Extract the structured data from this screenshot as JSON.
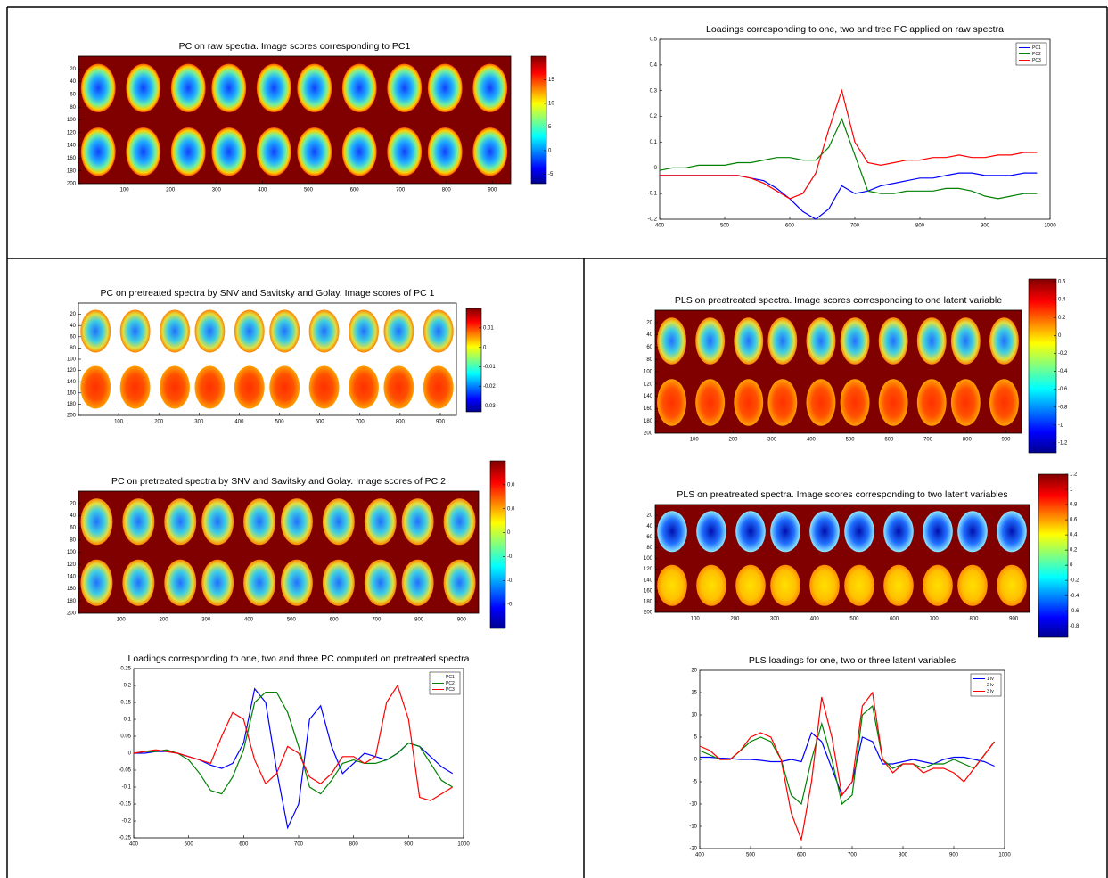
{
  "chart_data": [
    {
      "type": "image",
      "title": "PC on raw spectra. Image scores corresponding to PC1",
      "xlim": [
        0,
        940
      ],
      "xticks": [
        100,
        200,
        300,
        400,
        500,
        600,
        700,
        800,
        900
      ],
      "ylim": [
        0,
        200
      ],
      "y_reversed": true,
      "yticks": [
        20,
        40,
        60,
        80,
        100,
        120,
        140,
        160,
        180,
        200
      ],
      "clim": [
        -7,
        20
      ],
      "cticks": [
        -5,
        0,
        5,
        10,
        15
      ],
      "background": "#800000"
    },
    {
      "type": "line",
      "title": "Loadings corresponding to one, two and tree PC applied on raw spectra",
      "x": [
        400,
        420,
        440,
        460,
        480,
        500,
        520,
        540,
        560,
        580,
        600,
        620,
        640,
        660,
        680,
        700,
        720,
        740,
        760,
        780,
        800,
        820,
        840,
        860,
        880,
        900,
        920,
        940,
        960,
        980
      ],
      "xlim": [
        400,
        1000
      ],
      "xticks": [
        400,
        500,
        600,
        700,
        800,
        900,
        1000
      ],
      "ylim": [
        -0.2,
        0.5
      ],
      "yticks": [
        -0.2,
        -0.1,
        0,
        0.1,
        0.2,
        0.3,
        0.4,
        0.5
      ],
      "legend": "upper right",
      "series": [
        {
          "name": "PC1",
          "color": "#0000ff",
          "values": [
            -0.03,
            -0.03,
            -0.03,
            -0.03,
            -0.03,
            -0.03,
            -0.03,
            -0.04,
            -0.05,
            -0.08,
            -0.12,
            -0.17,
            -0.2,
            -0.16,
            -0.07,
            -0.1,
            -0.09,
            -0.07,
            -0.06,
            -0.05,
            -0.04,
            -0.04,
            -0.03,
            -0.02,
            -0.02,
            -0.03,
            -0.03,
            -0.03,
            -0.02,
            -0.02
          ]
        },
        {
          "name": "PC2",
          "color": "#008000",
          "values": [
            -0.01,
            0,
            0,
            0.01,
            0.01,
            0.01,
            0.02,
            0.02,
            0.03,
            0.04,
            0.04,
            0.03,
            0.03,
            0.08,
            0.19,
            0.05,
            -0.09,
            -0.1,
            -0.1,
            -0.09,
            -0.09,
            -0.09,
            -0.08,
            -0.08,
            -0.09,
            -0.11,
            -0.12,
            -0.11,
            -0.1,
            -0.1
          ]
        },
        {
          "name": "PC3",
          "color": "#ff0000",
          "values": [
            -0.03,
            -0.03,
            -0.03,
            -0.03,
            -0.03,
            -0.03,
            -0.03,
            -0.04,
            -0.06,
            -0.09,
            -0.12,
            -0.1,
            -0.02,
            0.15,
            0.3,
            0.1,
            0.02,
            0.01,
            0.02,
            0.03,
            0.03,
            0.04,
            0.04,
            0.05,
            0.04,
            0.04,
            0.05,
            0.05,
            0.06,
            0.06
          ]
        }
      ]
    },
    {
      "type": "image",
      "title": "PC on pretreated spectra by SNV and Savitsky and Golay. Image scores of PC 1",
      "xlim": [
        0,
        940
      ],
      "xticks": [
        100,
        200,
        300,
        400,
        500,
        600,
        700,
        800,
        900
      ],
      "ylim": [
        0,
        200
      ],
      "y_reversed": true,
      "yticks": [
        20,
        40,
        60,
        80,
        100,
        120,
        140,
        160,
        180,
        200
      ],
      "clim": [
        -0.033,
        0.02
      ],
      "cticks": [
        -0.03,
        -0.02,
        -0.01,
        0,
        0.01
      ],
      "background": "#ffffff"
    },
    {
      "type": "image",
      "title": "PC on pretreated spectra by SNV and Savitsky and Golay. Image scores of PC 2",
      "xlim": [
        0,
        940
      ],
      "xticks": [
        100,
        200,
        300,
        400,
        500,
        600,
        700,
        800,
        900
      ],
      "ylim": [
        0,
        200
      ],
      "y_reversed": true,
      "yticks": [
        20,
        40,
        60,
        80,
        100,
        120,
        140,
        160,
        180,
        200
      ],
      "clim": [
        -0.04,
        0.03
      ],
      "cticks": [
        {
          "value": -0.03,
          "label": "-0."
        },
        {
          "value": -0.02,
          "label": "-0."
        },
        {
          "value": -0.01,
          "label": "-0."
        },
        0,
        {
          "value": 0.01,
          "label": "0.0"
        },
        {
          "value": 0.02,
          "label": "0.0"
        }
      ],
      "background": "#800000"
    },
    {
      "type": "line",
      "title": "Loadings corresponding to one, two and three PC computed on pretreated spectra",
      "x": [
        400,
        420,
        440,
        460,
        480,
        500,
        520,
        540,
        560,
        580,
        600,
        620,
        640,
        660,
        680,
        700,
        720,
        740,
        760,
        780,
        800,
        820,
        840,
        860,
        880,
        900,
        920,
        940,
        960,
        980
      ],
      "xlim": [
        400,
        1000
      ],
      "xticks": [
        400,
        500,
        600,
        700,
        800,
        900,
        1000
      ],
      "ylim": [
        -0.25,
        0.25
      ],
      "yticks": [
        -0.25,
        -0.2,
        -0.15,
        -0.1,
        -0.05,
        0,
        0.05,
        0.1,
        0.15,
        0.2,
        0.25
      ],
      "legend": "upper right",
      "series": [
        {
          "name": "PC1",
          "color": "#0000ff",
          "values": [
            0,
            0,
            0.005,
            0.005,
            0,
            -0.01,
            -0.02,
            -0.035,
            -0.045,
            -0.03,
            0.03,
            0.19,
            0.15,
            -0.05,
            -0.22,
            -0.15,
            0.1,
            0.14,
            0.02,
            -0.06,
            -0.03,
            0,
            -0.01,
            -0.02,
            0,
            0.03,
            0.02,
            -0.01,
            -0.04,
            -0.06
          ]
        },
        {
          "name": "PC2",
          "color": "#008000",
          "values": [
            0,
            0.005,
            0.005,
            0.01,
            0,
            -0.02,
            -0.06,
            -0.11,
            -0.12,
            -0.07,
            0.01,
            0.15,
            0.18,
            0.18,
            0.12,
            0.02,
            -0.1,
            -0.12,
            -0.08,
            -0.03,
            -0.02,
            -0.03,
            -0.03,
            -0.02,
            0,
            0.03,
            0.02,
            -0.03,
            -0.08,
            -0.1
          ]
        },
        {
          "name": "PC3",
          "color": "#ff0000",
          "values": [
            0,
            0.005,
            0.01,
            0.005,
            0,
            -0.01,
            -0.02,
            -0.03,
            0.05,
            0.12,
            0.1,
            -0.02,
            -0.09,
            -0.06,
            0.02,
            0,
            -0.07,
            -0.09,
            -0.06,
            -0.01,
            -0.01,
            -0.03,
            -0.01,
            0.15,
            0.2,
            0.1,
            -0.13,
            -0.14,
            -0.12,
            -0.1
          ]
        }
      ]
    },
    {
      "type": "image",
      "title": "PLS on preatreated spectra. Image scores corresponding to one latent variable",
      "xlim": [
        0,
        940
      ],
      "xticks": [
        100,
        200,
        300,
        400,
        500,
        600,
        700,
        800,
        900
      ],
      "ylim": [
        0,
        200
      ],
      "y_reversed": true,
      "yticks": [
        20,
        40,
        60,
        80,
        100,
        120,
        140,
        160,
        180,
        200
      ],
      "clim": [
        -1.31,
        0.63
      ],
      "cticks": [
        -1.2,
        -1,
        -0.8,
        -0.6,
        -0.4,
        -0.2,
        0,
        0.2,
        0.4,
        0.6
      ],
      "background": "#800000"
    },
    {
      "type": "image",
      "title": "PLS on preatreated spectra. Image scores corresponding to two latent variables",
      "xlim": [
        0,
        940
      ],
      "xticks": [
        100,
        200,
        300,
        400,
        500,
        600,
        700,
        800,
        900
      ],
      "ylim": [
        0,
        200
      ],
      "y_reversed": true,
      "yticks": [
        20,
        40,
        60,
        80,
        100,
        120,
        140,
        160,
        180,
        200
      ],
      "clim": [
        -0.95,
        1.2
      ],
      "cticks": [
        -0.8,
        -0.6,
        -0.4,
        -0.2,
        0,
        0.2,
        0.4,
        0.6,
        0.8,
        1,
        1.2
      ],
      "background": "#800000"
    },
    {
      "type": "line",
      "title": "PLS loadings for one, two or three latent variables",
      "x": [
        400,
        420,
        440,
        460,
        480,
        500,
        520,
        540,
        560,
        580,
        600,
        620,
        640,
        660,
        680,
        700,
        720,
        740,
        760,
        780,
        800,
        820,
        840,
        860,
        880,
        900,
        920,
        940,
        960,
        980
      ],
      "xlim": [
        400,
        1000
      ],
      "xticks": [
        400,
        500,
        600,
        700,
        800,
        900,
        1000
      ],
      "ylim": [
        -20,
        20
      ],
      "yticks": [
        -20,
        -15,
        -10,
        -5,
        0,
        5,
        10,
        15,
        20
      ],
      "legend": "upper right",
      "series": [
        {
          "name": "1 lv",
          "color": "#0000ff",
          "values": [
            0.5,
            0.5,
            0.3,
            0.2,
            0,
            0,
            -0.2,
            -0.5,
            -0.5,
            0,
            -0.5,
            6,
            4,
            -2,
            -8,
            -5,
            5,
            4,
            -1,
            -1,
            -0.5,
            0,
            -0.5,
            -1,
            0,
            0.5,
            0.5,
            0,
            -0.5,
            -1.5
          ]
        },
        {
          "name": "2 lv",
          "color": "#008000",
          "values": [
            2,
            1,
            0,
            0,
            2,
            4,
            5,
            4,
            0,
            -8,
            -10,
            0,
            8,
            0,
            -10,
            -8,
            10,
            12,
            0,
            -2,
            -1,
            -1,
            -2,
            -1,
            -1,
            0,
            -1,
            -2,
            1,
            4
          ]
        },
        {
          "name": "3 lv",
          "color": "#ff0000",
          "values": [
            3,
            2,
            0,
            0,
            2,
            5,
            6,
            5,
            0,
            -12,
            -18,
            -5,
            14,
            5,
            -8,
            -5,
            12,
            15,
            0,
            -3,
            -1,
            -1,
            -3,
            -2,
            -2,
            -3,
            -5,
            -2,
            1,
            4
          ]
        }
      ]
    }
  ]
}
